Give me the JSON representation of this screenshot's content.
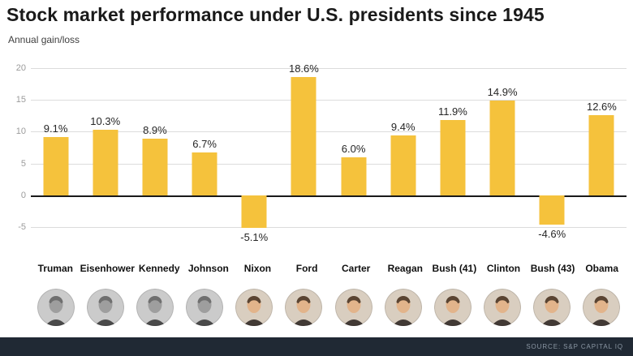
{
  "header": {
    "title": "Stock market performance under U.S. presidents since 1945",
    "subtitle": "Annual gain/loss"
  },
  "footer": {
    "source": "SOURCE: S&P CAPITAL IQ"
  },
  "chart_data": {
    "type": "bar",
    "title": "Stock market performance under U.S. presidents since 1945",
    "xlabel": "",
    "ylabel": "Annual gain/loss",
    "categories": [
      "Truman",
      "Eisenhower",
      "Kennedy",
      "Johnson",
      "Nixon",
      "Ford",
      "Carter",
      "Reagan",
      "Bush (41)",
      "Clinton",
      "Bush (43)",
      "Obama"
    ],
    "values": [
      9.1,
      10.3,
      8.9,
      6.7,
      -5.1,
      18.6,
      6.0,
      9.4,
      11.9,
      14.9,
      -4.6,
      12.6
    ],
    "labels": [
      "9.1%",
      "10.3%",
      "8.9%",
      "6.7%",
      "-5.1%",
      "18.6%",
      "6.0%",
      "9.4%",
      "11.9%",
      "14.9%",
      "-4.6%",
      "12.6%"
    ],
    "yticks": [
      20,
      15,
      10,
      5,
      0,
      -5
    ],
    "ylim": [
      -5,
      20
    ],
    "grid": true,
    "legend": "none",
    "bar_color": "#f5c23c",
    "gridline_color": "#dcdcdc",
    "zero_line_color": "#1a1a1a"
  },
  "presidents": [
    {
      "name": "Truman",
      "portrait_style": "bw"
    },
    {
      "name": "Eisenhower",
      "portrait_style": "bw"
    },
    {
      "name": "Kennedy",
      "portrait_style": "bw"
    },
    {
      "name": "Johnson",
      "portrait_style": "bw"
    },
    {
      "name": "Nixon",
      "portrait_style": "color"
    },
    {
      "name": "Ford",
      "portrait_style": "color"
    },
    {
      "name": "Carter",
      "portrait_style": "color"
    },
    {
      "name": "Reagan",
      "portrait_style": "color"
    },
    {
      "name": "Bush (41)",
      "portrait_style": "color"
    },
    {
      "name": "Clinton",
      "portrait_style": "color"
    },
    {
      "name": "Bush (43)",
      "portrait_style": "color"
    },
    {
      "name": "Obama",
      "portrait_style": "color"
    }
  ]
}
